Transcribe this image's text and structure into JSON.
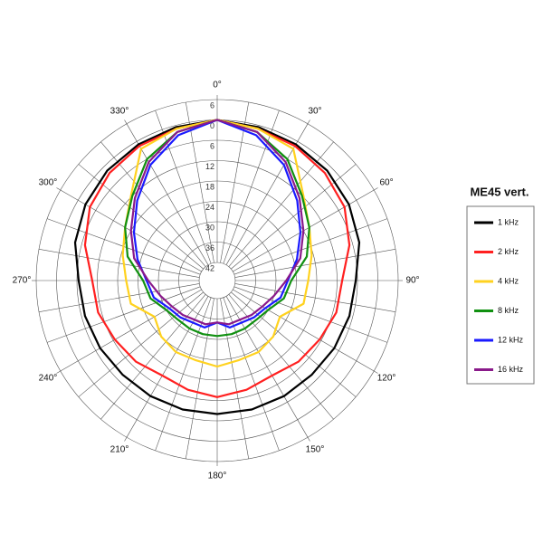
{
  "chart_data": {
    "type": "polar",
    "legend_title": "ME45 vert.",
    "theta": [
      0,
      15,
      30,
      45,
      60,
      75,
      90,
      105,
      120,
      135,
      150,
      165,
      180,
      195,
      210,
      225,
      240,
      255,
      270,
      285,
      300,
      315,
      330,
      345
    ],
    "rlim": [
      -42,
      6
    ],
    "rticks": [
      {
        "value": 6,
        "label": "6"
      },
      0,
      {
        "value": -6,
        "label": "6"
      },
      {
        "value": -12,
        "label": "12"
      },
      {
        "value": -18,
        "label": "18"
      },
      {
        "value": -24,
        "label": "24"
      },
      {
        "value": -30,
        "label": "30"
      },
      {
        "value": -36,
        "label": "36"
      },
      {
        "value": -42,
        "label": "42"
      }
    ],
    "thetaticks": [
      {
        "value": 0,
        "label": "0°"
      },
      {
        "value": 30,
        "label": "30°"
      },
      {
        "value": 60,
        "label": "60°"
      },
      {
        "value": 90,
        "label": "90°"
      },
      {
        "value": 120,
        "label": "120°"
      },
      {
        "value": 150,
        "label": "150°"
      },
      {
        "value": 180,
        "label": "180°"
      },
      {
        "value": 210,
        "label": "210°"
      },
      {
        "value": 240,
        "label": "240°"
      },
      {
        "value": 270,
        "label": "270°"
      },
      {
        "value": 300,
        "label": "300°"
      },
      {
        "value": 330,
        "label": "330°"
      }
    ],
    "spoke_step": 10,
    "series": [
      {
        "name": "1 kHz",
        "color": "#000000",
        "values": [
          0,
          -0.5,
          -1,
          -1.5,
          -2.5,
          -4,
          -6.5,
          -7,
          -7.5,
          -8,
          -8,
          -8,
          -8,
          -8,
          -8,
          -8,
          -7.5,
          -7,
          -6.5,
          -4,
          -2.5,
          -1.5,
          -1,
          -0.5
        ]
      },
      {
        "name": "2 kHz",
        "color": "#ff2020",
        "values": [
          0,
          -1,
          -1.5,
          -2.5,
          -4,
          -7,
          -10.5,
          -11,
          -12.5,
          -13.5,
          -15,
          -14,
          -13,
          -14,
          -15,
          -13.5,
          -12.5,
          -11,
          -10.5,
          -7,
          -4,
          -2.5,
          -1.5,
          -1
        ]
      },
      {
        "name": "4 kHz",
        "color": "#ffd21f",
        "values": [
          0,
          -1,
          -2.5,
          -11.5,
          -16,
          -18.5,
          -20.5,
          -21,
          -26,
          -24,
          -23,
          -23,
          -22,
          -23,
          -23,
          -24,
          -26,
          -21,
          -20.5,
          -18.5,
          -16,
          -11.5,
          -2.5,
          -1
        ]
      },
      {
        "name": "8 kHz",
        "color": "#109010",
        "values": [
          0,
          -2,
          -6,
          -12,
          -16,
          -20,
          -25.5,
          -27,
          -30,
          -31,
          -31,
          -31,
          -31,
          -31,
          -31,
          -31,
          -30,
          -27,
          -25.5,
          -20,
          -16,
          -12,
          -6,
          -2
        ]
      },
      {
        "name": "12 kHz",
        "color": "#1a1aff",
        "values": [
          0,
          -3,
          -8,
          -14,
          -19,
          -23,
          -26.5,
          -28,
          -31,
          -32,
          -33,
          -33,
          -35,
          -33,
          -33,
          -32,
          -31,
          -28,
          -26.5,
          -23,
          -19,
          -14,
          -8,
          -3
        ]
      },
      {
        "name": "16 kHz",
        "color": "#8a1a8a",
        "values": [
          0,
          -2,
          -7,
          -13,
          -18,
          -22,
          -27,
          -30,
          -32,
          -33,
          -34,
          -34,
          -35,
          -34,
          -34,
          -33,
          -32,
          -30,
          -27,
          -22,
          -18,
          -13,
          -7,
          -2
        ]
      }
    ]
  }
}
